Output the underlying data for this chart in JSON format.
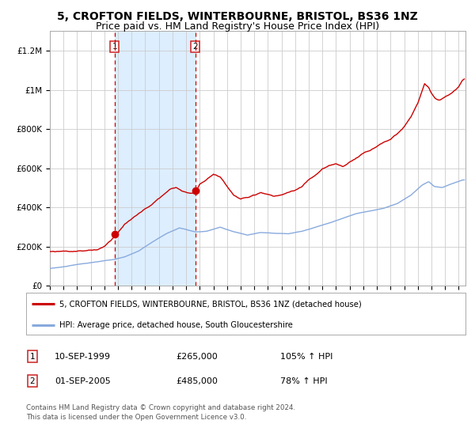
{
  "title": "5, CROFTON FIELDS, WINTERBOURNE, BRISTOL, BS36 1NZ",
  "subtitle": "Price paid vs. HM Land Registry's House Price Index (HPI)",
  "legend_label_red": "5, CROFTON FIELDS, WINTERBOURNE, BRISTOL, BS36 1NZ (detached house)",
  "legend_label_blue": "HPI: Average price, detached house, South Gloucestershire",
  "purchase1_date": "10-SEP-1999",
  "purchase1_price": 265000,
  "purchase1_pct": "105% ↑ HPI",
  "purchase2_date": "01-SEP-2005",
  "purchase2_price": 485000,
  "purchase2_pct": "78% ↑ HPI",
  "footnote": "Contains HM Land Registry data © Crown copyright and database right 2024.\nThis data is licensed under the Open Government Licence v3.0.",
  "xlim_start": 1995.0,
  "xlim_end": 2025.5,
  "ylim_bottom": 0,
  "ylim_top": 1300000,
  "vline1_x": 1999.75,
  "vline2_x": 2005.67,
  "shade_start": 1999.75,
  "shade_end": 2005.67,
  "red_line_color": "#cc0000",
  "blue_line_color": "#88aadd",
  "shade_color": "#ddeeff",
  "grid_color": "#cccccc",
  "bg_color": "#ffffff",
  "title_fontsize": 10,
  "subtitle_fontsize": 9,
  "yticks": [
    0,
    200000,
    400000,
    600000,
    800000,
    1000000,
    1200000
  ],
  "ylabels": [
    "£0",
    "£200K",
    "£400K",
    "£600K",
    "£800K",
    "£1M",
    "£1.2M"
  ]
}
